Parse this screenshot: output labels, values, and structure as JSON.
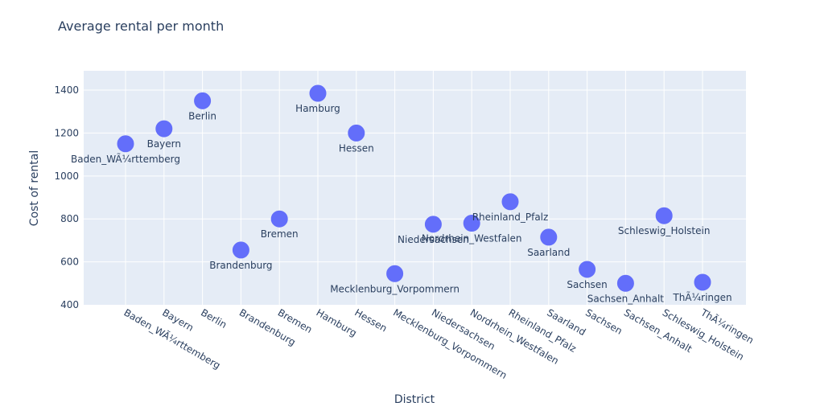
{
  "chart_data": {
    "type": "scatter",
    "title": "Average rental per month",
    "xlabel": "District",
    "ylabel": "Cost of rental",
    "ylim": [
      400,
      1490
    ],
    "y_ticks": [
      400,
      600,
      800,
      1000,
      1200,
      1400
    ],
    "grid": true,
    "categories": [
      "Baden_WÃ¼rttemberg",
      "Bayern",
      "Berlin",
      "Brandenburg",
      "Bremen",
      "Hamburg",
      "Hessen",
      "Mecklenburg_Vorpommern",
      "Niedersachsen",
      "Nordrhein_Westfalen",
      "Rheinland_Pfalz",
      "Saarland",
      "Sachsen",
      "Sachsen_Anhalt",
      "Schleswig_Holstein",
      "ThÃ¼ringen"
    ],
    "values": [
      1150,
      1220,
      1350,
      655,
      800,
      1385,
      1200,
      545,
      775,
      780,
      880,
      715,
      565,
      500,
      815,
      505
    ],
    "marker_color": "#636efa",
    "plot_bg": "#e5ecf6"
  }
}
